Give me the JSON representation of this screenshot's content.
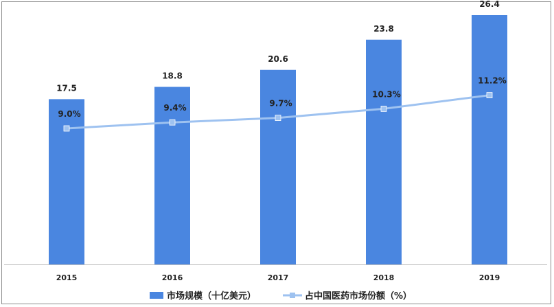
{
  "chart_data": {
    "type": "bar+line",
    "categories": [
      "2015",
      "2016",
      "2017",
      "2018",
      "2019"
    ],
    "series": [
      {
        "name": "市场规模（十亿美元）",
        "type": "bar",
        "values": [
          17.5,
          18.8,
          20.6,
          23.8,
          26.4
        ],
        "labels": [
          "17.5",
          "18.8",
          "20.6",
          "23.8",
          "26.4"
        ],
        "color": "#4a86e0"
      },
      {
        "name": "占中国医药市场份额（%）",
        "type": "line",
        "values": [
          9.0,
          9.4,
          9.7,
          10.3,
          11.2
        ],
        "labels": [
          "9.0%",
          "9.4%",
          "9.7%",
          "10.3%",
          "11.2%"
        ],
        "color": "#9ec2f0"
      }
    ],
    "bar_axis_range": [
      0,
      28
    ],
    "line_axis_range": [
      0,
      17.5
    ],
    "grid": false,
    "legend_position": "bottom"
  }
}
